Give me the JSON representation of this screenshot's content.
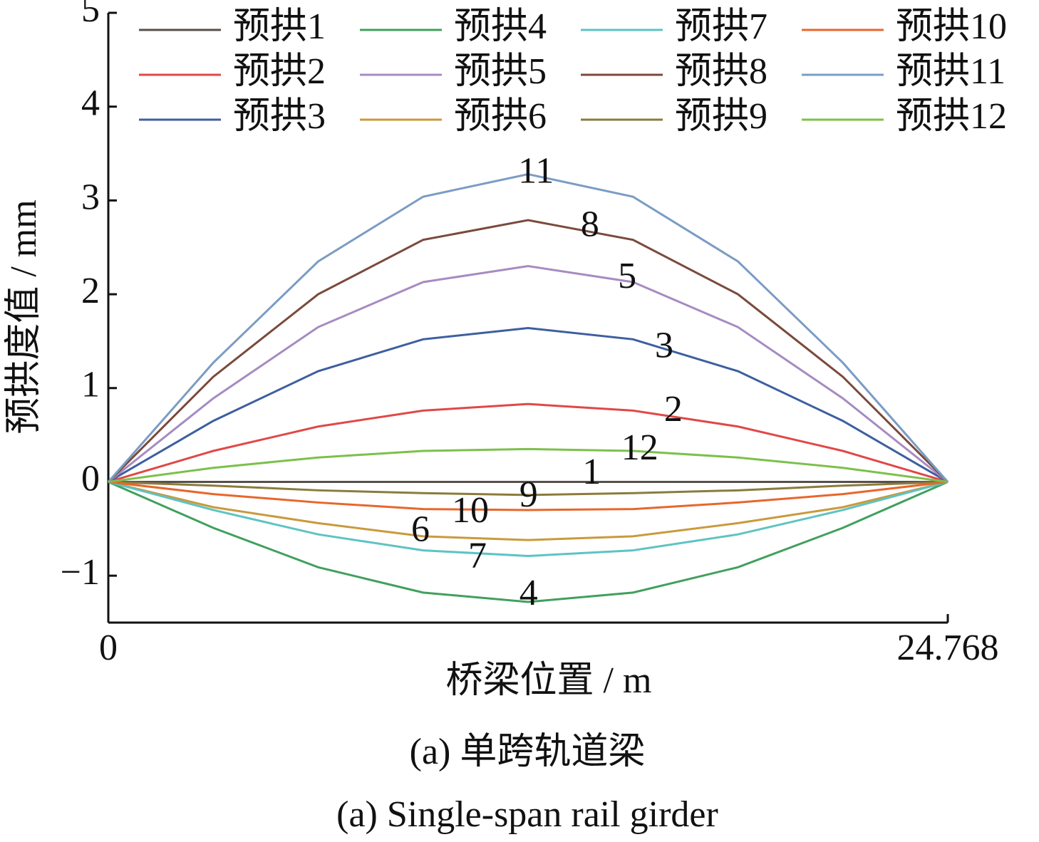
{
  "chart_data": {
    "type": "line",
    "xlabel": "桥梁位置 / m",
    "ylabel": "预拱度值 / mm",
    "captions": [
      "(a) 单跨轨道梁",
      "(a) Single-span rail girder"
    ],
    "x": [
      0,
      3.096,
      6.192,
      9.288,
      12.384,
      15.48,
      18.576,
      21.672,
      24.768
    ],
    "xlim": [
      0,
      24.768
    ],
    "xticks": [
      0,
      24.768
    ],
    "ylim": [
      -1.5,
      5
    ],
    "yticks": [
      {
        "value": -1,
        "label": "−1"
      },
      0,
      1,
      2,
      3,
      4,
      5
    ],
    "legend": "top",
    "series": [
      {
        "name": "预拱1",
        "color": "#56504b",
        "values": [
          0,
          0,
          0,
          0,
          0,
          0,
          0,
          0,
          0
        ]
      },
      {
        "name": "预拱2",
        "color": "#e04848",
        "values": [
          0,
          0.33,
          0.59,
          0.76,
          0.83,
          0.76,
          0.59,
          0.33,
          0
        ]
      },
      {
        "name": "预拱3",
        "color": "#3d5f9e",
        "values": [
          0,
          0.65,
          1.18,
          1.52,
          1.64,
          1.52,
          1.18,
          0.65,
          0
        ]
      },
      {
        "name": "预拱4",
        "color": "#41a05c",
        "values": [
          0,
          -0.49,
          -0.91,
          -1.18,
          -1.28,
          -1.18,
          -0.91,
          -0.49,
          0
        ]
      },
      {
        "name": "预拱5",
        "color": "#a68bc2",
        "values": [
          0,
          0.89,
          1.65,
          2.13,
          2.3,
          2.13,
          1.65,
          0.89,
          0
        ]
      },
      {
        "name": "预拱6",
        "color": "#c99a3c",
        "values": [
          0,
          -0.27,
          -0.44,
          -0.58,
          -0.62,
          -0.58,
          -0.44,
          -0.27,
          0
        ]
      },
      {
        "name": "预拱7",
        "color": "#5ec3c3",
        "values": [
          0,
          -0.3,
          -0.56,
          -0.73,
          -0.79,
          -0.73,
          -0.56,
          -0.3,
          0
        ]
      },
      {
        "name": "预拱8",
        "color": "#7a4a3c",
        "values": [
          0,
          1.12,
          2.0,
          2.58,
          2.79,
          2.58,
          2.0,
          1.12,
          0
        ]
      },
      {
        "name": "预拱9",
        "color": "#8b7b3c",
        "values": [
          0,
          -0.04,
          -0.09,
          -0.12,
          -0.14,
          -0.12,
          -0.09,
          -0.04,
          0
        ]
      },
      {
        "name": "预拱10",
        "color": "#e8662c",
        "values": [
          0,
          -0.13,
          -0.22,
          -0.29,
          -0.3,
          -0.29,
          -0.22,
          -0.13,
          0
        ]
      },
      {
        "name": "预拱11",
        "color": "#7b9cc4",
        "values": [
          0,
          1.27,
          2.35,
          3.04,
          3.28,
          3.04,
          2.35,
          1.27,
          0
        ]
      },
      {
        "name": "预拱12",
        "color": "#7cc04b",
        "values": [
          0,
          0.15,
          0.26,
          0.33,
          0.35,
          0.33,
          0.26,
          0.15,
          0
        ]
      }
    ],
    "annotations": [
      {
        "text": "11",
        "x": 12.62,
        "y": 3.28
      },
      {
        "text": "8",
        "x": 14.21,
        "y": 2.71
      },
      {
        "text": "5",
        "x": 15.31,
        "y": 2.16
      },
      {
        "text": "3",
        "x": 16.4,
        "y": 1.42
      },
      {
        "text": "2",
        "x": 16.67,
        "y": 0.74
      },
      {
        "text": "12",
        "x": 15.68,
        "y": 0.33
      },
      {
        "text": "1",
        "x": 14.26,
        "y": 0.07
      },
      {
        "text": "9",
        "x": 12.4,
        "y": -0.17
      },
      {
        "text": "10",
        "x": 10.68,
        "y": -0.34
      },
      {
        "text": "6",
        "x": 9.21,
        "y": -0.54
      },
      {
        "text": "7",
        "x": 10.89,
        "y": -0.82
      },
      {
        "text": "4",
        "x": 12.4,
        "y": -1.22
      }
    ]
  }
}
